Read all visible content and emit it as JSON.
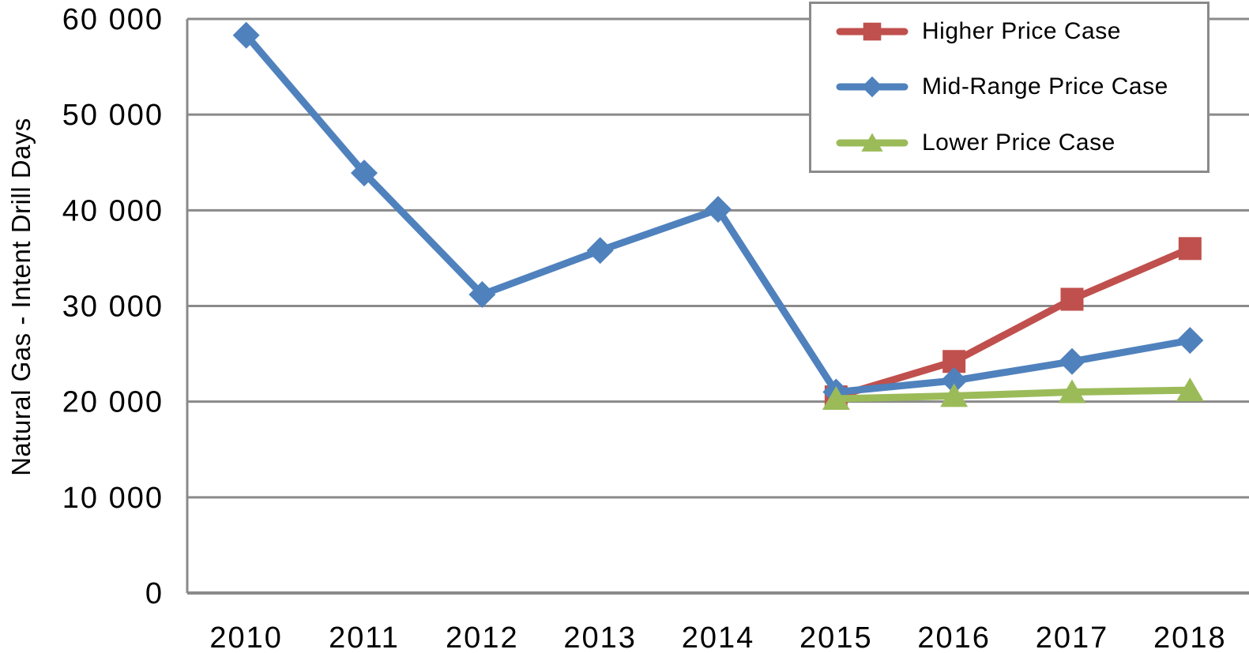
{
  "chart_data": {
    "type": "line",
    "title": "",
    "xlabel": "",
    "ylabel": "Natural Gas - Intent Drill Days",
    "categories": [
      "2010",
      "2011",
      "2012",
      "2013",
      "2014",
      "2015",
      "2016",
      "2017",
      "2018"
    ],
    "ylim": [
      0,
      60000
    ],
    "ytick_step": 10000,
    "ytick_labels": [
      "0",
      "10 000",
      "20 000",
      "30 000",
      "40 000",
      "50 000",
      "60 000"
    ],
    "grid": "horizontal",
    "grid_color": "#8A8A8A",
    "text_color": "#000000",
    "legend_position": "top-right",
    "series": [
      {
        "name": "Higher Price Case",
        "color": "#C0504D",
        "marker": "square",
        "values": [
          null,
          null,
          null,
          null,
          null,
          20500,
          24200,
          30700,
          36000
        ]
      },
      {
        "name": "Mid-Range Price Case",
        "color": "#4F81BD",
        "marker": "diamond",
        "values": [
          58300,
          43900,
          31200,
          35800,
          40100,
          21000,
          22200,
          24200,
          26400
        ]
      },
      {
        "name": "Lower Price Case",
        "color": "#9BBB59",
        "marker": "triangle",
        "values": [
          null,
          null,
          null,
          null,
          null,
          20300,
          20600,
          21000,
          21200
        ]
      }
    ]
  }
}
